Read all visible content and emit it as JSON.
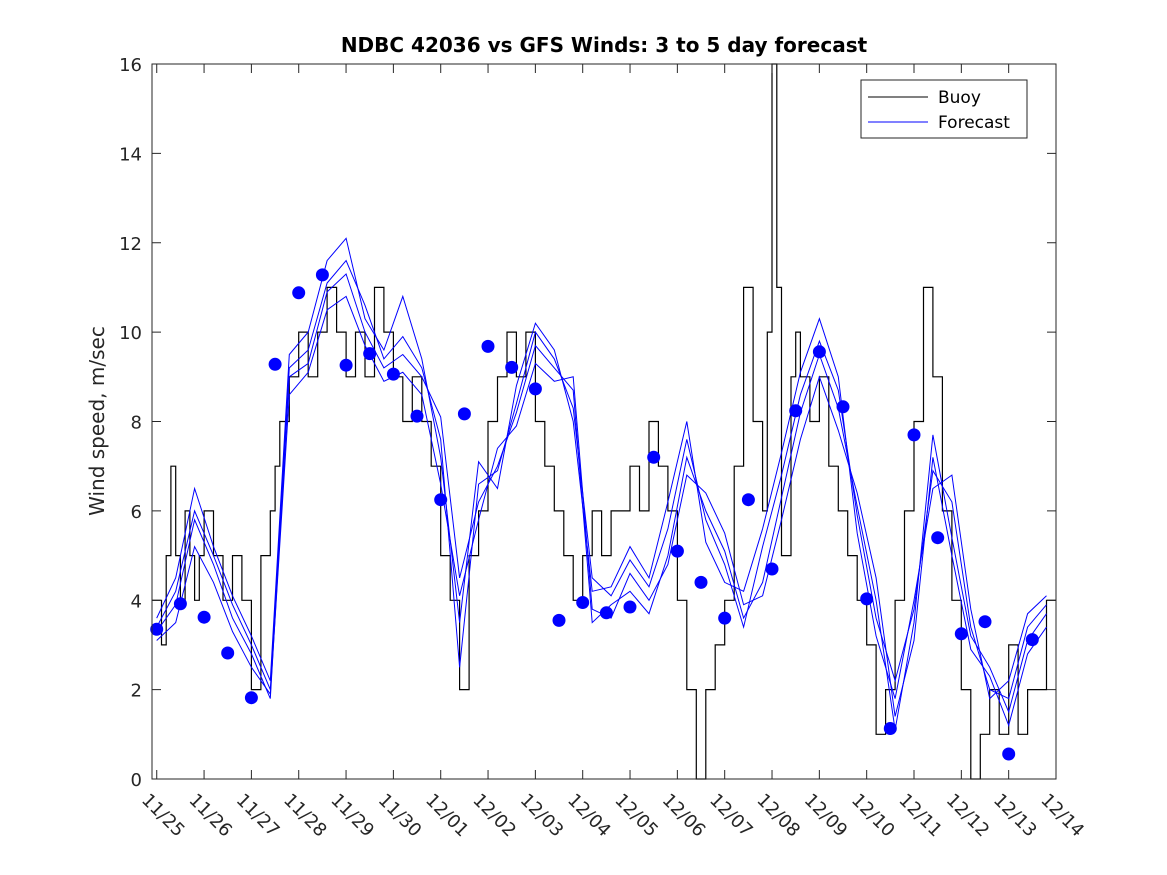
{
  "chart_data": {
    "type": "line",
    "title": "NDBC 42036 vs GFS Winds: 3 to 5 day forecast",
    "xlabel": "",
    "ylabel": "Wind speed, m/sec",
    "x_units": "days since 11/25 00:00",
    "xlim": [
      -0.1,
      19.0
    ],
    "ylim": [
      0,
      16
    ],
    "yticks": [
      0,
      2,
      4,
      6,
      8,
      10,
      12,
      14,
      16
    ],
    "xtick_labels": [
      "11/25",
      "11/26",
      "11/27",
      "11/28",
      "11/29",
      "11/30",
      "12/01",
      "12/02",
      "12/03",
      "12/04",
      "12/05",
      "12/06",
      "12/07",
      "12/08",
      "12/09",
      "12/10",
      "12/11",
      "12/12",
      "12/13",
      "12/14"
    ],
    "legend": {
      "position": "top-right",
      "entries": [
        "Buoy",
        "Forecast"
      ]
    },
    "colors": {
      "buoy": "#000000",
      "forecast": "#0000ff",
      "marker": "#0000ff",
      "axis": "#262626"
    },
    "buoy": {
      "x": [
        -0.1,
        0.1,
        0.2,
        0.3,
        0.4,
        0.5,
        0.6,
        0.7,
        0.8,
        0.9,
        1.0,
        1.2,
        1.4,
        1.6,
        1.8,
        2.0,
        2.2,
        2.4,
        2.5,
        2.6,
        2.8,
        3.0,
        3.2,
        3.4,
        3.6,
        3.8,
        4.0,
        4.2,
        4.4,
        4.6,
        4.8,
        5.0,
        5.2,
        5.4,
        5.6,
        5.8,
        6.0,
        6.2,
        6.4,
        6.6,
        6.8,
        7.0,
        7.2,
        7.4,
        7.6,
        7.8,
        8.0,
        8.2,
        8.4,
        8.6,
        8.8,
        9.0,
        9.2,
        9.4,
        9.6,
        9.8,
        10.0,
        10.2,
        10.4,
        10.6,
        10.8,
        11.0,
        11.2,
        11.4,
        11.6,
        11.8,
        12.0,
        12.2,
        12.4,
        12.6,
        12.8,
        12.9,
        13.0,
        13.1,
        13.2,
        13.4,
        13.5,
        13.6,
        13.8,
        14.0,
        14.2,
        14.4,
        14.6,
        14.8,
        15.0,
        15.2,
        15.4,
        15.6,
        15.8,
        16.0,
        16.2,
        16.4,
        16.6,
        16.8,
        17.0,
        17.2,
        17.4,
        17.6,
        17.8,
        18.0,
        18.2,
        18.4,
        18.6,
        18.8,
        19.0
      ],
      "y": [
        4,
        3,
        5,
        7,
        5,
        4,
        6,
        5,
        4,
        5,
        6,
        5,
        4,
        5,
        4,
        2,
        5,
        6,
        7,
        8,
        9,
        10,
        9,
        10,
        11,
        10,
        9,
        10,
        9,
        11,
        10,
        9,
        8,
        9,
        8,
        7,
        5,
        4,
        2,
        5,
        6,
        8,
        9,
        10,
        9,
        10,
        8,
        7,
        6,
        5,
        4,
        5,
        6,
        5,
        6,
        6,
        7,
        6,
        8,
        7,
        6,
        4,
        2,
        0,
        2,
        3,
        4,
        7,
        11,
        8,
        6,
        10,
        16,
        11,
        5,
        9,
        10,
        9,
        8,
        9,
        7,
        6,
        5,
        4,
        3,
        1,
        2,
        4,
        6,
        8,
        11,
        9,
        6,
        4,
        2,
        0,
        1,
        2,
        1,
        3,
        1,
        2,
        2,
        4,
        4
      ]
    },
    "forecast_series": [
      {
        "name": "Forecast 1",
        "x": [
          0.0,
          0.4,
          0.8,
          1.2,
          1.6,
          2.0,
          2.4,
          2.8,
          3.2,
          3.6,
          4.0,
          4.4,
          4.8,
          5.2,
          5.6,
          6.0,
          6.4,
          6.8,
          7.2,
          7.6,
          8.0,
          8.4,
          8.8,
          9.2,
          9.6,
          10.0,
          10.4,
          10.8,
          11.2,
          11.6,
          12.0,
          12.4,
          12.8,
          13.2,
          13.6,
          14.0,
          14.4,
          14.8,
          15.2,
          15.6,
          16.0,
          16.4,
          16.8,
          17.2,
          17.6,
          18.0,
          18.4,
          18.8
        ],
        "y": [
          3.3,
          3.9,
          5.8,
          4.8,
          3.6,
          2.8,
          1.8,
          9.0,
          9.3,
          10.9,
          11.3,
          10.0,
          9.2,
          9.5,
          9.0,
          8.1,
          4.5,
          6.2,
          7.0,
          8.2,
          9.7,
          9.2,
          8.7,
          3.5,
          3.9,
          4.2,
          3.7,
          5.0,
          7.2,
          6.0,
          5.1,
          3.6,
          4.4,
          6.3,
          8.2,
          9.5,
          8.3,
          6.1,
          4.0,
          1.1,
          3.5,
          7.7,
          5.4,
          3.2,
          2.5,
          1.5,
          3.1,
          3.7
        ]
      },
      {
        "name": "Forecast 2",
        "x": [
          0.0,
          0.4,
          0.8,
          1.2,
          1.6,
          2.0,
          2.4,
          2.8,
          3.2,
          3.6,
          4.0,
          4.4,
          4.8,
          5.2,
          5.6,
          6.0,
          6.4,
          6.8,
          7.2,
          7.6,
          8.0,
          8.4,
          8.8,
          9.2,
          9.6,
          10.0,
          10.4,
          10.8,
          11.2,
          11.6,
          12.0,
          12.4,
          12.8,
          13.2,
          13.6,
          14.0,
          14.4,
          14.8,
          15.2,
          15.6,
          16.0,
          16.4,
          16.8,
          17.2,
          17.6,
          18.0,
          18.4,
          18.8
        ],
        "y": [
          3.6,
          4.5,
          6.5,
          5.2,
          4.1,
          3.2,
          2.2,
          9.5,
          10.0,
          11.6,
          12.1,
          10.3,
          9.6,
          10.8,
          9.4,
          7.2,
          3.5,
          7.1,
          6.5,
          8.8,
          10.2,
          9.6,
          8.0,
          4.2,
          4.3,
          5.2,
          4.5,
          6.2,
          8.0,
          5.3,
          4.4,
          4.2,
          5.6,
          7.3,
          9.1,
          10.3,
          9.0,
          5.5,
          3.2,
          1.8,
          4.0,
          6.5,
          6.8,
          3.8,
          1.8,
          2.2,
          3.7,
          4.1
        ]
      },
      {
        "name": "Forecast 3",
        "x": [
          0.0,
          0.4,
          0.8,
          1.2,
          1.6,
          2.0,
          2.4,
          2.8,
          3.2,
          3.6,
          4.0,
          4.4,
          4.8,
          5.2,
          5.6,
          6.0,
          6.4,
          6.8,
          7.2,
          7.6,
          8.0,
          8.4,
          8.8,
          9.2,
          9.6,
          10.0,
          10.4,
          10.8,
          11.2,
          11.6,
          12.0,
          12.4,
          12.8,
          13.2,
          13.6,
          14.0,
          14.4,
          14.8,
          15.2,
          15.6,
          16.0,
          16.4,
          16.8,
          17.2,
          17.6,
          18.0,
          18.4,
          18.8
        ],
        "y": [
          3.1,
          3.5,
          5.2,
          4.4,
          3.3,
          2.5,
          1.9,
          8.6,
          9.1,
          10.5,
          10.8,
          9.7,
          8.9,
          9.1,
          8.6,
          6.6,
          4.1,
          5.8,
          7.4,
          7.9,
          9.3,
          8.9,
          9.0,
          3.8,
          3.6,
          4.6,
          4.0,
          4.8,
          6.8,
          6.4,
          5.5,
          3.9,
          4.1,
          5.8,
          7.6,
          9.0,
          7.8,
          6.4,
          4.5,
          1.4,
          3.1,
          7.2,
          5.0,
          2.9,
          2.3,
          1.2,
          2.8,
          3.4
        ]
      },
      {
        "name": "Forecast 4",
        "x": [
          0.0,
          0.4,
          0.8,
          1.2,
          1.6,
          2.0,
          2.4,
          2.8,
          3.2,
          3.6,
          4.0,
          4.4,
          4.8,
          5.2,
          5.6,
          6.0,
          6.4,
          6.8,
          7.2,
          7.6,
          8.0,
          8.4,
          8.8,
          9.2,
          9.6,
          10.0,
          10.4,
          10.8,
          11.2,
          11.6,
          12.0,
          12.4,
          12.8,
          13.2,
          13.6,
          14.0,
          14.4,
          14.8,
          15.2,
          15.6,
          16.0,
          16.4,
          16.8,
          17.2,
          17.6,
          18.0,
          18.4,
          18.8
        ],
        "y": [
          3.4,
          4.2,
          6.0,
          5.0,
          3.9,
          3.0,
          2.0,
          9.2,
          9.6,
          11.1,
          11.6,
          10.6,
          9.4,
          9.9,
          9.2,
          7.6,
          2.5,
          6.6,
          6.9,
          8.4,
          10.0,
          9.4,
          8.3,
          4.5,
          4.1,
          4.9,
          4.3,
          5.6,
          7.6,
          5.8,
          4.8,
          3.4,
          5.2,
          6.8,
          8.6,
          9.8,
          8.7,
          5.9,
          3.6,
          2.2,
          3.8,
          6.9,
          6.2,
          3.4,
          2.0,
          1.8,
          3.4,
          3.9
        ]
      }
    ],
    "markers": {
      "x": [
        0.0,
        0.5,
        1.0,
        1.5,
        2.0,
        2.5,
        3.0,
        3.5,
        4.0,
        4.5,
        5.0,
        5.5,
        6.0,
        6.5,
        7.0,
        7.5,
        8.0,
        8.5,
        9.0,
        9.5,
        10.0,
        10.5,
        11.0,
        11.5,
        12.0,
        12.5,
        13.0,
        13.5,
        14.0,
        14.5,
        15.0,
        15.5,
        16.0,
        16.5,
        17.0,
        17.5,
        18.0,
        18.5
      ],
      "y": [
        3.35,
        3.92,
        3.62,
        2.82,
        1.82,
        9.28,
        10.88,
        11.28,
        9.26,
        9.52,
        9.06,
        8.12,
        6.25,
        8.17,
        9.68,
        9.21,
        8.73,
        3.55,
        3.95,
        3.72,
        3.85,
        7.2,
        5.1,
        4.4,
        3.6,
        6.25,
        4.7,
        8.24,
        9.56,
        8.33,
        4.03,
        1.13,
        7.7,
        5.4,
        3.25,
        3.52,
        0.56,
        3.12
      ]
    }
  }
}
